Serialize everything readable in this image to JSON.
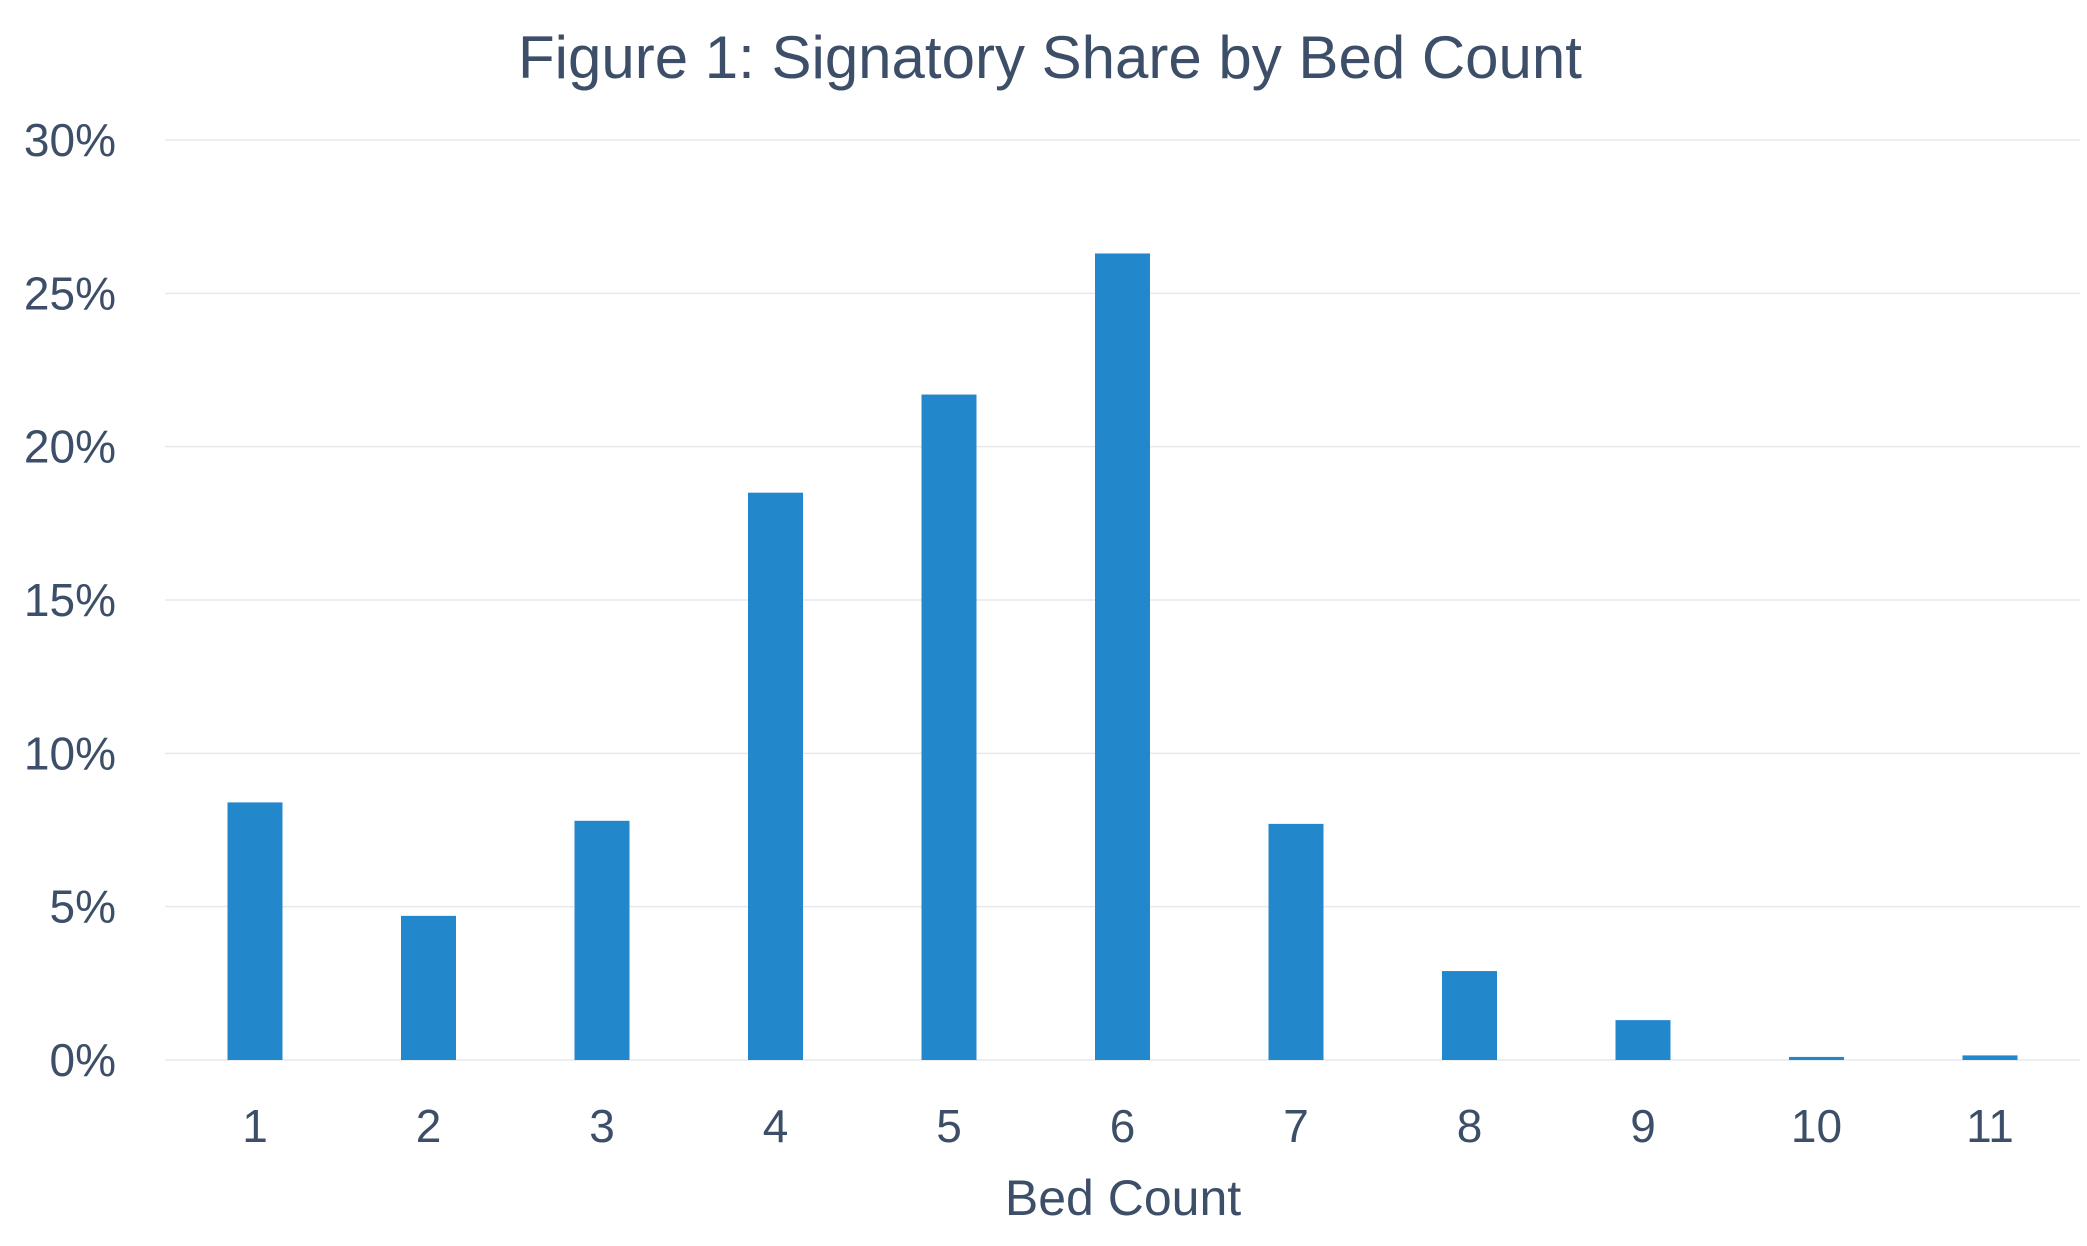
{
  "chart_data": {
    "type": "bar",
    "title": "Figure 1: Signatory Share by Bed Count",
    "xlabel": "Bed Count",
    "ylabel": "",
    "categories": [
      "1",
      "2",
      "3",
      "4",
      "5",
      "6",
      "7",
      "8",
      "9",
      "10",
      "11"
    ],
    "values": [
      8.4,
      4.7,
      7.8,
      18.5,
      21.7,
      26.3,
      7.7,
      2.9,
      1.3,
      0.1,
      0.15
    ],
    "ylim": [
      0,
      30
    ],
    "yticks": [
      {
        "value": 0,
        "label": "0%"
      },
      {
        "value": 5,
        "label": "5%"
      },
      {
        "value": 10,
        "label": "10%"
      },
      {
        "value": 15,
        "label": "15%"
      },
      {
        "value": 20,
        "label": "20%"
      },
      {
        "value": 25,
        "label": "25%"
      },
      {
        "value": 30,
        "label": "30%"
      }
    ],
    "grid": true,
    "legend": "none",
    "bar_color": "#2387cc",
    "text_color": "#3d4f68"
  }
}
